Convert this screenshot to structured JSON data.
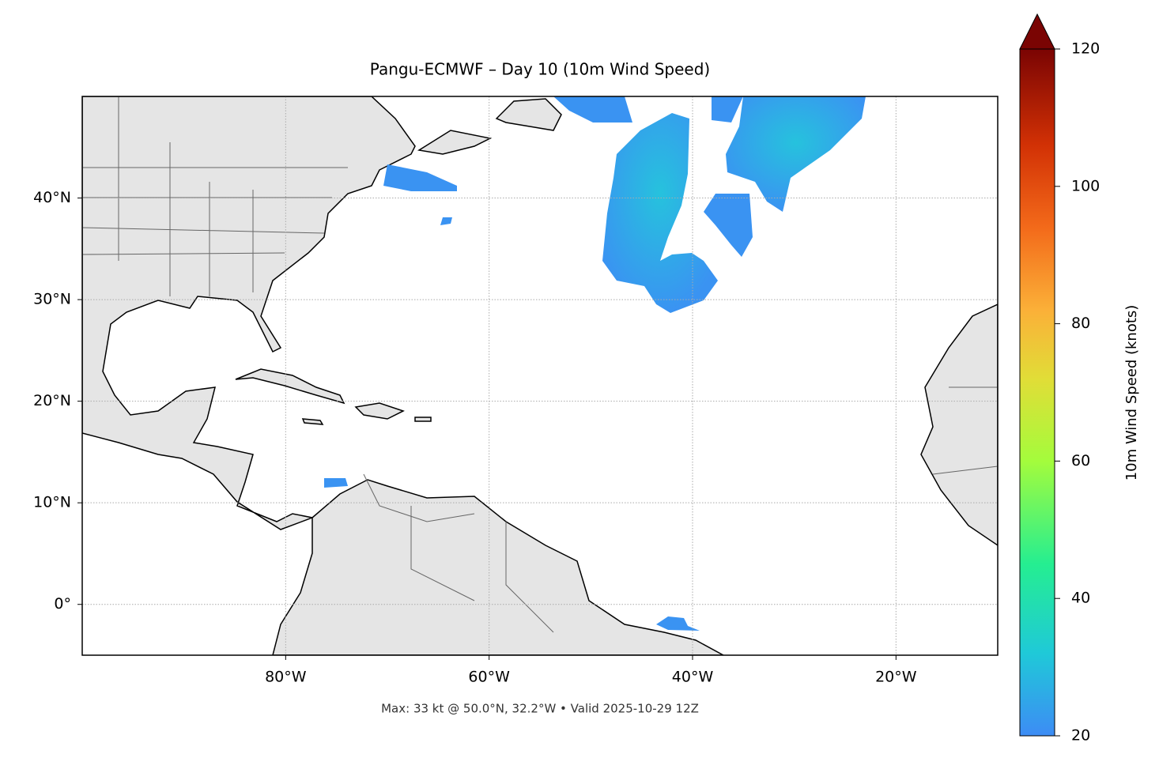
{
  "title": "Pangu-ECMWF – Day 10 (10m Wind Speed)",
  "map": {
    "lonlim": [
      -100,
      -10
    ],
    "latlim": [
      -5,
      50
    ],
    "lon_ticks": [
      {
        "value": -80,
        "label": "80°W"
      },
      {
        "value": -60,
        "label": "60°W"
      },
      {
        "value": -40,
        "label": "40°W"
      },
      {
        "value": -20,
        "label": "20°W"
      }
    ],
    "lat_ticks": [
      {
        "value": 0,
        "label": "0°"
      },
      {
        "value": 10,
        "label": "10°N"
      },
      {
        "value": 20,
        "label": "20°N"
      },
      {
        "value": 30,
        "label": "30°N"
      },
      {
        "value": 40,
        "label": "40°N"
      }
    ],
    "grid": true
  },
  "colorbar": {
    "label": "10m Wind Speed (knots)",
    "lim": [
      20,
      120
    ],
    "ticks": [
      20,
      40,
      60,
      80,
      100,
      120
    ]
  },
  "footer": "Max: 33 kt @ 50.0°N, 32.2°W • Valid 2025-10-29 12Z"
}
